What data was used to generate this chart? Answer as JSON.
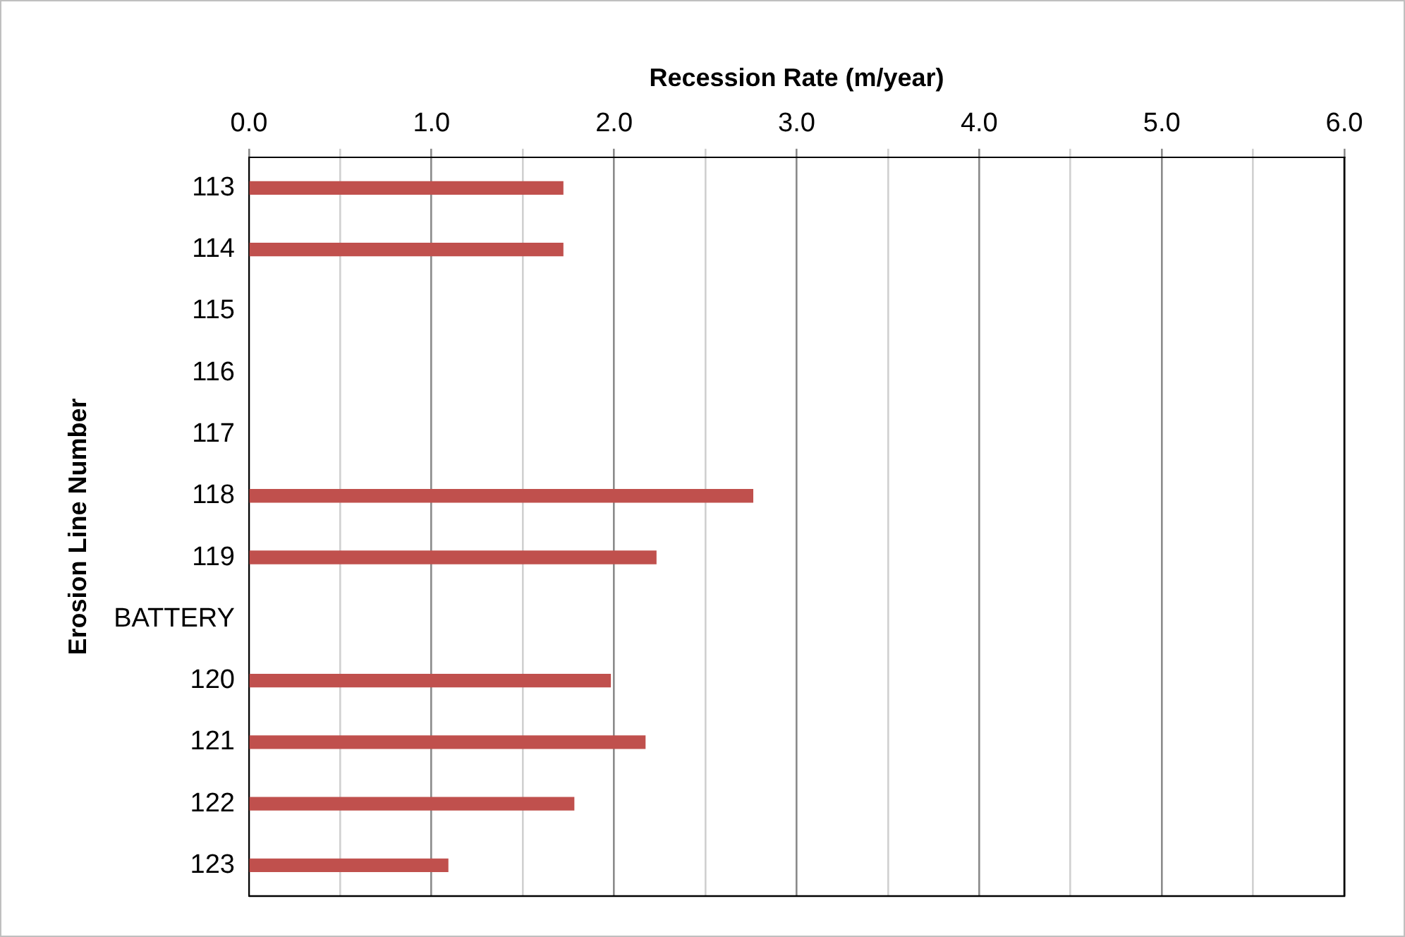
{
  "chart_data": {
    "type": "bar",
    "orientation": "horizontal",
    "xlabel": "Recession Rate (m/year)",
    "ylabel": "Erosion Line Number",
    "categories": [
      "113",
      "114",
      "115",
      "116",
      "117",
      "118",
      "119",
      "BATTERY",
      "120",
      "121",
      "122",
      "123"
    ],
    "values": [
      1.72,
      1.72,
      null,
      null,
      null,
      2.76,
      2.23,
      null,
      1.98,
      2.17,
      1.78,
      1.09
    ],
    "color": "#c0504d",
    "xlim": [
      0,
      6
    ],
    "xticks": [
      {
        "value": 0,
        "label": "0.0"
      },
      {
        "value": 0.5,
        "label": null
      },
      {
        "value": 1,
        "label": "1.0"
      },
      {
        "value": 1.5,
        "label": null
      },
      {
        "value": 2,
        "label": "2.0"
      },
      {
        "value": 2.5,
        "label": null
      },
      {
        "value": 3,
        "label": "3.0"
      },
      {
        "value": 3.5,
        "label": null
      },
      {
        "value": 4,
        "label": "4.0"
      },
      {
        "value": 4.5,
        "label": null
      },
      {
        "value": 5,
        "label": "5.0"
      },
      {
        "value": 5.5,
        "label": null
      },
      {
        "value": 6,
        "label": "6.0"
      }
    ],
    "grid": "x"
  }
}
